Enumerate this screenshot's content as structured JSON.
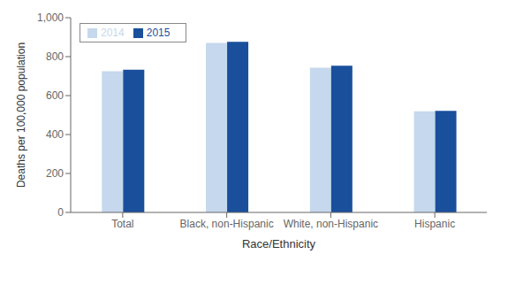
{
  "chart_data": {
    "type": "bar",
    "categories": [
      "Total",
      "Black, non-Hispanic",
      "White, non-Hispanic",
      "Hispanic"
    ],
    "series": [
      {
        "name": "2014",
        "color": "#c5d8ed",
        "values": [
          724.6,
          870.7,
          742.8,
          519.0
        ]
      },
      {
        "name": "2015",
        "color": "#1a4f9c",
        "values": [
          733.1,
          876.1,
          753.2,
          522.0
        ]
      }
    ],
    "xlabel": "Race/Ethnicity",
    "ylabel": "Deaths per 100,000 population",
    "ylim": [
      0,
      1000
    ],
    "yticks": [
      0,
      200,
      400,
      600,
      800,
      {
        "value": 1000,
        "label": "1,000"
      }
    ],
    "legend": "upper left",
    "grid": false
  }
}
